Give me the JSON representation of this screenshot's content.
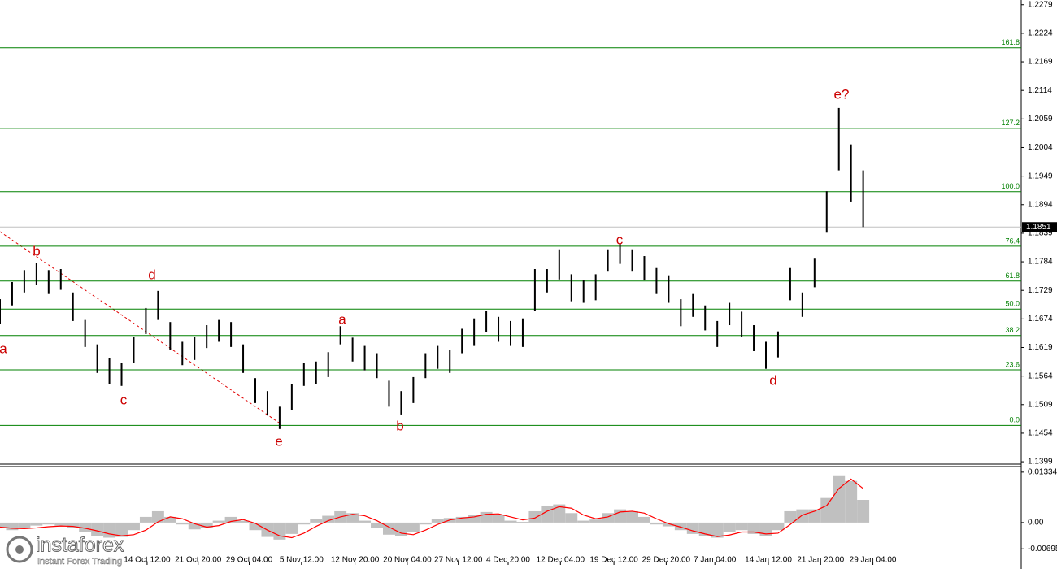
{
  "chart_data": [
    {
      "type": "hilo",
      "color": "#000000",
      "xlim": [
        0,
        84
      ],
      "ylim": [
        1.1396,
        1.2288
      ],
      "yticks": [
        1.2279,
        1.2224,
        1.2169,
        1.2114,
        1.2059,
        1.2004,
        1.1949,
        1.1894,
        1.1839,
        1.1784,
        1.1729,
        1.1674,
        1.1619,
        1.1564,
        1.1509,
        1.1454,
        1.1399
      ],
      "high": [
        1.1712,
        1.1745,
        1.1768,
        1.1782,
        1.1768,
        1.177,
        1.1725,
        1.1672,
        1.1625,
        1.1598,
        1.159,
        1.164,
        1.1695,
        1.1728,
        1.1668,
        1.163,
        1.164,
        1.1662,
        1.1672,
        1.1668,
        1.1625,
        1.156,
        1.1535,
        1.1505,
        1.1548,
        1.159,
        1.1592,
        1.161,
        1.166,
        1.1638,
        1.1622,
        1.1608,
        1.1555,
        1.1535,
        1.1562,
        1.1608,
        1.1622,
        1.1615,
        1.1655,
        1.1675,
        1.169,
        1.1678,
        1.167,
        1.1675,
        1.177,
        1.177,
        1.1808,
        1.176,
        1.1748,
        1.176,
        1.1808,
        1.1818,
        1.1808,
        1.1795,
        1.1772,
        1.1758,
        1.1712,
        1.1722,
        1.17,
        1.167,
        1.1705,
        1.1688,
        1.1662,
        1.163,
        1.165,
        1.1772,
        1.1725,
        1.179,
        1.192,
        1.208,
        1.201,
        1.196
      ],
      "low": [
        1.1665,
        1.17,
        1.1725,
        1.174,
        1.1722,
        1.173,
        1.167,
        1.162,
        1.157,
        1.1548,
        1.1545,
        1.159,
        1.1645,
        1.1672,
        1.1615,
        1.1585,
        1.1595,
        1.1618,
        1.163,
        1.162,
        1.157,
        1.1512,
        1.1488,
        1.1462,
        1.1498,
        1.1545,
        1.1548,
        1.1562,
        1.1625,
        1.1592,
        1.1575,
        1.156,
        1.1505,
        1.149,
        1.1512,
        1.156,
        1.1578,
        1.157,
        1.1608,
        1.1622,
        1.1648,
        1.163,
        1.1622,
        1.162,
        1.169,
        1.1725,
        1.175,
        1.1708,
        1.1705,
        1.171,
        1.1765,
        1.178,
        1.1765,
        1.1748,
        1.1722,
        1.1705,
        1.166,
        1.1678,
        1.1652,
        1.162,
        1.1662,
        1.164,
        1.1612,
        1.1578,
        1.16,
        1.171,
        1.1678,
        1.1735,
        1.184,
        1.196,
        1.19,
        1.1851
      ],
      "last": 1.1851,
      "last_label": "1.1851",
      "level_color": "#008000",
      "levels": [
        {
          "label": "161.8",
          "value": 1.2196
        },
        {
          "label": "127.2",
          "value": 1.2041
        },
        {
          "label": "100.0",
          "value": 1.1919
        },
        {
          "label": "76.4",
          "value": 1.1814
        },
        {
          "label": "61.8",
          "value": 1.1747
        },
        {
          "label": "50.0",
          "value": 1.1693
        },
        {
          "label": "38.2",
          "value": 1.1642
        },
        {
          "label": "23.6",
          "value": 1.1576
        },
        {
          "label": "0.0",
          "value": 1.1469
        }
      ],
      "annotation_color": "#cc0000",
      "annotations": [
        "a",
        "b",
        "c",
        "d",
        "e",
        "a",
        "b",
        "c",
        "d",
        "e?"
      ]
    },
    {
      "type": "oscillator",
      "xlim": [
        0,
        84
      ],
      "ylim": [
        -0.0112,
        0.0146
      ],
      "yticks": [
        0.01334,
        {
          "value": 0,
          "label": "0.00"
        },
        -0.00695
      ],
      "color": "#c0c0c0",
      "signal_color": "#ff0000",
      "values": [
        -0.0015,
        -0.002,
        -0.0015,
        -0.0008,
        -0.0005,
        -0.0008,
        -0.0015,
        -0.0025,
        -0.0035,
        -0.004,
        -0.0038,
        -0.002,
        0.0015,
        0.003,
        0.0015,
        -0.0005,
        -0.0018,
        -0.0015,
        0.0005,
        0.0015,
        0.0005,
        -0.002,
        -0.0038,
        -0.0045,
        -0.003,
        -0.0005,
        0.001,
        0.0018,
        0.003,
        0.0025,
        0.0005,
        -0.0015,
        -0.0032,
        -0.0035,
        -0.0025,
        -0.0005,
        0.001,
        0.0012,
        0.0015,
        0.002,
        0.0028,
        0.002,
        0.0005,
        0.0002,
        0.003,
        0.0045,
        0.0048,
        0.0025,
        0.0005,
        0.0008,
        0.0025,
        0.0035,
        0.003,
        0.0015,
        -0.0005,
        -0.001,
        -0.002,
        -0.003,
        -0.0035,
        -0.004,
        -0.0025,
        -0.002,
        -0.003,
        -0.0035,
        -0.002,
        0.003,
        0.0035,
        0.0035,
        0.0065,
        0.0125,
        0.011,
        0.006
      ],
      "signal": [
        -0.0012,
        -0.0015,
        -0.0016,
        -0.0014,
        -0.0011,
        -0.0009,
        -0.001,
        -0.0015,
        -0.0022,
        -0.003,
        -0.0035,
        -0.0032,
        -0.002,
        0.0002,
        0.0015,
        0.001,
        -0.0003,
        -0.0012,
        -0.0008,
        0.0003,
        0.0008,
        -0.0002,
        -0.002,
        -0.0035,
        -0.004,
        -0.0028,
        -0.001,
        0.0005,
        0.0015,
        0.0022,
        0.0018,
        0.0005,
        -0.0012,
        -0.0028,
        -0.0032,
        -0.002,
        -0.0005,
        0.0007,
        0.0012,
        0.0015,
        0.0022,
        0.0023,
        0.0015,
        0.0007,
        0.0012,
        0.003,
        0.0042,
        0.0038,
        0.002,
        0.001,
        0.0015,
        0.0028,
        0.003,
        0.0025,
        0.001,
        -0.0003,
        -0.0012,
        -0.0022,
        -0.003,
        -0.0037,
        -0.0033,
        -0.0025,
        -0.0025,
        -0.003,
        -0.0028,
        -0.0005,
        0.002,
        0.003,
        0.0045,
        0.009,
        0.0115,
        0.009
      ],
      "xticks": [
        {
          "value": 12.1,
          "label": "14 Oct 12:00"
        },
        {
          "value": 16.3,
          "label": "21 Oct 20:00"
        },
        {
          "value": 20.5,
          "label": "29 Oct 04:00"
        },
        {
          "value": 24.8,
          "label": "5 Nov 12:00"
        },
        {
          "value": 29.2,
          "label": "12 Nov 20:00"
        },
        {
          "value": 33.5,
          "label": "20 Nov 04:00"
        },
        {
          "value": 37.7,
          "label": "27 Nov 12:00"
        },
        {
          "value": 41.8,
          "label": "4 Dec 20:00"
        },
        {
          "value": 46.1,
          "label": "12 Dec 04:00"
        },
        {
          "value": 50.5,
          "label": "19 Dec 12:00"
        },
        {
          "value": 54.8,
          "label": "29 Dec 20:00"
        },
        {
          "value": 58.8,
          "label": "7 Jan 04:00"
        },
        {
          "value": 63.2,
          "label": "14 Jan 12:00"
        },
        {
          "value": 67.5,
          "label": "21 Jan 20:00"
        },
        {
          "value": 71.8,
          "label": "29 Jan 04:00"
        }
      ]
    }
  ],
  "logo": {
    "name": "instaforex",
    "tagline": "Instant Forex Trading"
  }
}
